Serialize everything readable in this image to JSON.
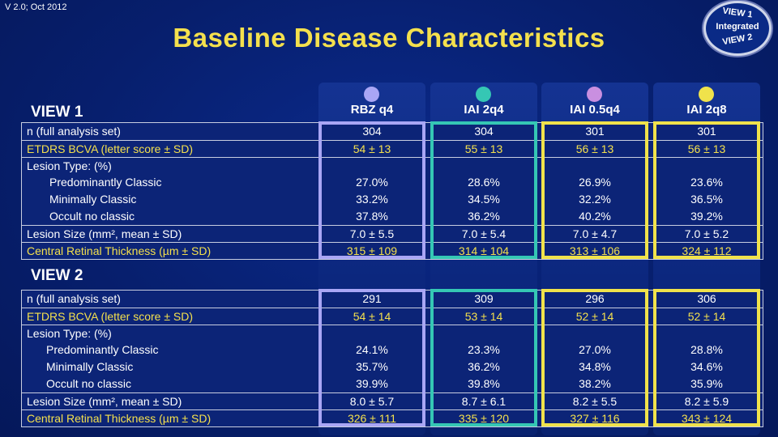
{
  "version": "V 2.0; Oct 2012",
  "title": "Baseline Disease Characteristics",
  "logo": {
    "line1": "VIEW 1",
    "line2": "Integrated",
    "line3": "VIEW 2"
  },
  "colors": {
    "rbz_q4": "#a9a6f5",
    "iai_2q4": "#35c7b4",
    "iai_05q4": "#c98fe0",
    "iai_2q8": "#f0e24b",
    "title": "#f4e04d",
    "background": "#0a237a"
  },
  "columns": [
    "RBZ q4",
    "IAI 2q4",
    "IAI 0.5q4",
    "IAI 2q8"
  ],
  "view1": {
    "label": "VIEW 1",
    "rows": [
      {
        "label": "n (full analysis set)",
        "values": [
          "304",
          "304",
          "301",
          "301"
        ],
        "style": "white"
      },
      {
        "label": "ETDRS BCVA (letter score ± SD)",
        "values": [
          "54 ± 13",
          "55 ± 13",
          "56 ± 13",
          "56 ± 13"
        ],
        "style": "yellow"
      },
      {
        "label": "Lesion Type: (%)",
        "values": [
          "",
          "",
          "",
          ""
        ],
        "style": "white"
      },
      {
        "label": "Predominantly Classic",
        "values": [
          "27.0%",
          "28.6%",
          "26.9%",
          "23.6%"
        ],
        "style": "indent"
      },
      {
        "label": "Minimally Classic",
        "values": [
          "33.2%",
          "34.5%",
          "32.2%",
          "36.5%"
        ],
        "style": "indent"
      },
      {
        "label": "Occult no classic",
        "values": [
          "37.8%",
          "36.2%",
          "40.2%",
          "39.2%"
        ],
        "style": "indent"
      },
      {
        "label": "Lesion Size (mm², mean ± SD)",
        "values": [
          "7.0 ± 5.5",
          "7.0 ± 5.4",
          "7.0 ± 4.7",
          "7.0 ± 5.2"
        ],
        "style": "white"
      },
      {
        "label": "Central Retinal Thickness (µm ± SD)",
        "values": [
          "315 ± 109",
          "314 ± 104",
          "313 ± 106",
          "324 ± 112"
        ],
        "style": "yellow"
      }
    ]
  },
  "view2": {
    "label": "VIEW 2",
    "rows": [
      {
        "label": "n (full analysis set)",
        "values": [
          "291",
          "309",
          "296",
          "306"
        ],
        "style": "white"
      },
      {
        "label": "ETDRS BCVA (letter score ± SD)",
        "values": [
          "54 ± 14",
          "53 ± 14",
          "52 ± 14",
          "52 ± 14"
        ],
        "style": "yellow"
      },
      {
        "label": "Lesion Type: (%)",
        "values": [
          "",
          "",
          "",
          ""
        ],
        "style": "white"
      },
      {
        "label": "Predominantly Classic",
        "values": [
          "24.1%",
          "23.3%",
          "27.0%",
          "28.8%"
        ],
        "style": "indent"
      },
      {
        "label": "Minimally Classic",
        "values": [
          "35.7%",
          "36.2%",
          "34.8%",
          "34.6%"
        ],
        "style": "indent"
      },
      {
        "label": "Occult no classic",
        "values": [
          "39.9%",
          "39.8%",
          "38.2%",
          "35.9%"
        ],
        "style": "indent"
      },
      {
        "label": "Lesion Size (mm², mean ± SD)",
        "values": [
          "8.0 ± 5.7",
          "8.7 ± 6.1",
          "8.2 ± 5.5",
          "8.2 ± 5.9"
        ],
        "style": "white"
      },
      {
        "label": "Central Retinal Thickness (µm ± SD)",
        "values": [
          "326 ± 111",
          "335 ± 120",
          "327 ± 116",
          "343 ± 124"
        ],
        "style": "yellow"
      }
    ]
  }
}
